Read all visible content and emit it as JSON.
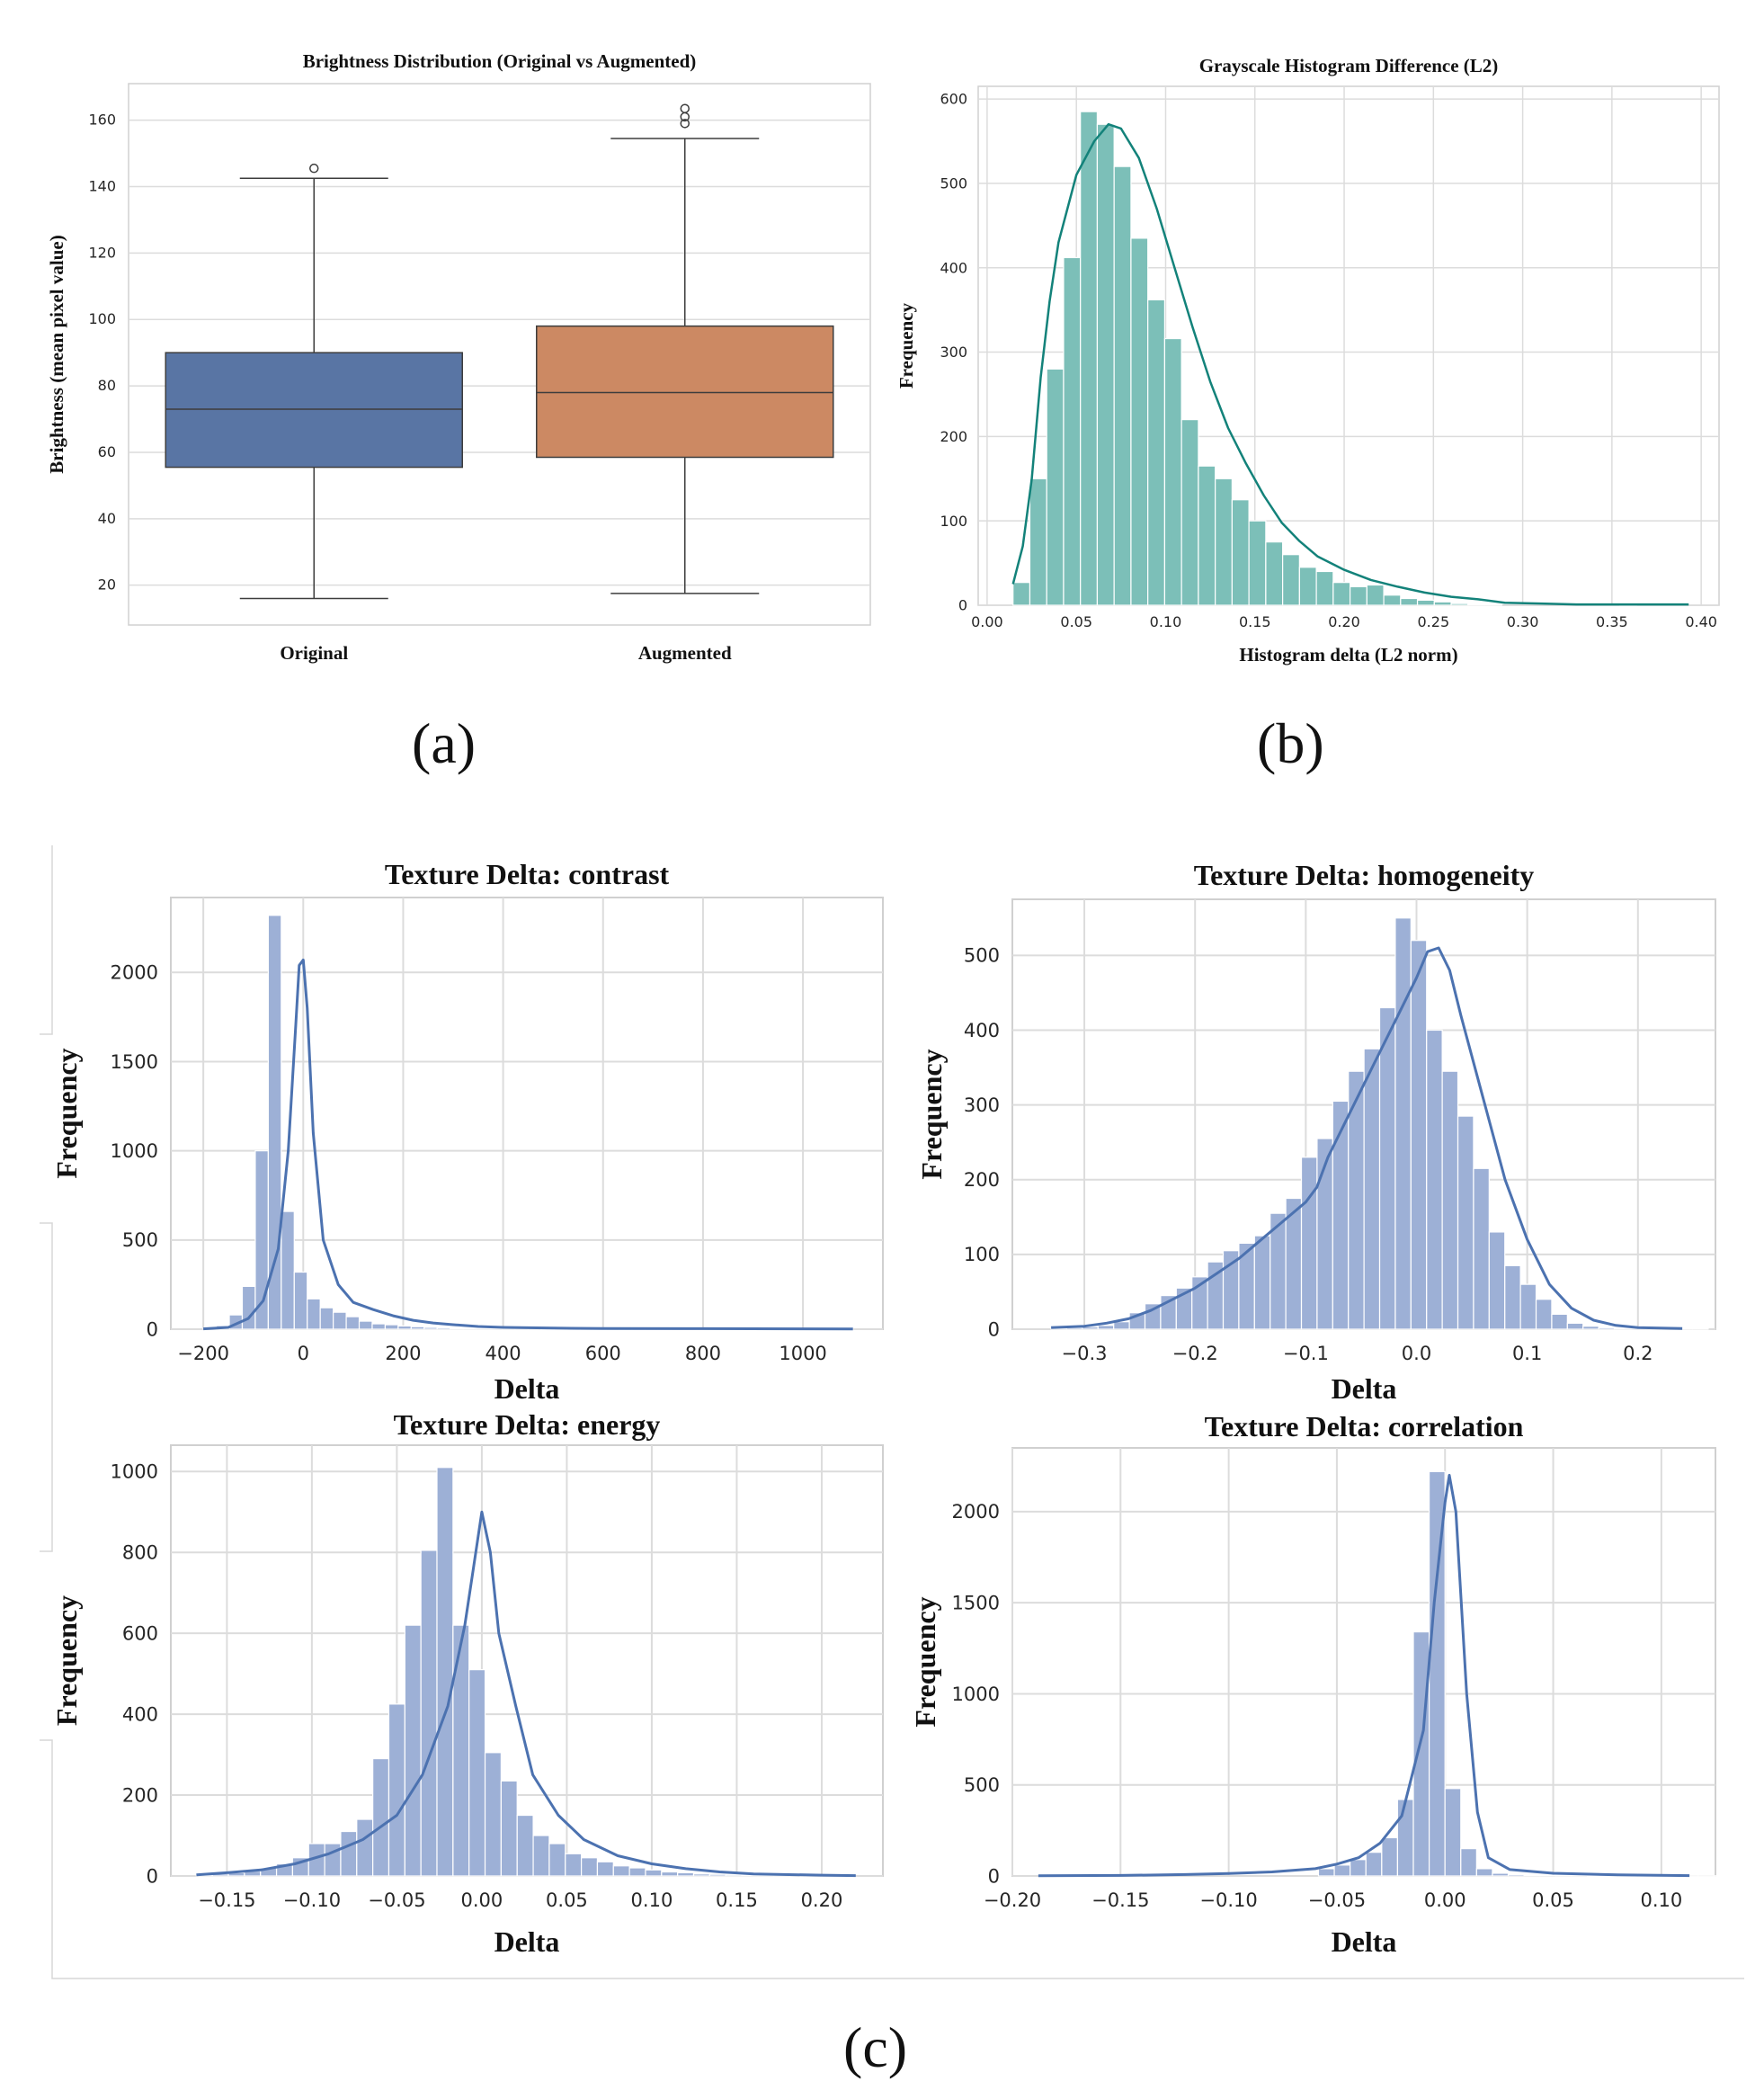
{
  "panel_labels": [
    "(a)",
    "(b)",
    "(c)"
  ],
  "chart_data": [
    {
      "id": "a",
      "type": "box",
      "title": "Brightness Distribution  (Original vs Augmented)",
      "xlabel": "",
      "ylabel": "Brightness (mean pixel value)",
      "categories": [
        "Original",
        "Augmented"
      ],
      "ylim": [
        8,
        171
      ],
      "yticks": [
        20,
        40,
        60,
        80,
        100,
        120,
        140,
        160
      ],
      "grid": true,
      "colors": [
        "#5975a4",
        "#cc8963"
      ],
      "boxes": [
        {
          "name": "Original",
          "whisker_low": 16,
          "q1": 55.5,
          "median": 73,
          "q3": 90,
          "whisker_high": 142.5,
          "outliers": [
            145.5
          ]
        },
        {
          "name": "Augmented",
          "whisker_low": 17.5,
          "q1": 58.5,
          "median": 78,
          "q3": 98,
          "whisker_high": 154.5,
          "outliers": [
            159,
            161,
            163.5
          ]
        }
      ]
    },
    {
      "id": "b",
      "type": "histogram",
      "title": "Grayscale Histogram Difference (L2)",
      "xlabel": "Histogram delta (L2 norm)",
      "ylabel": "Frequency",
      "xlim": [
        -0.005,
        0.41
      ],
      "ylim": [
        0,
        615
      ],
      "xticks": [
        0.0,
        0.05,
        0.1,
        0.15,
        0.2,
        0.25,
        0.3,
        0.35,
        0.4
      ],
      "xtick_labels": [
        "0.00",
        "0.05",
        "0.10",
        "0.15",
        "0.20",
        "0.25",
        "0.30",
        "0.35",
        "0.40"
      ],
      "yticks": [
        0,
        100,
        200,
        300,
        400,
        500,
        600
      ],
      "grid": true,
      "bar_color": "#7cbfb8",
      "kde_color": "#13827a",
      "bin_start": 0.0145,
      "bin_width": 0.00944,
      "counts": [
        27,
        150,
        280,
        412,
        585,
        570,
        520,
        435,
        362,
        316,
        220,
        165,
        150,
        125,
        100,
        75,
        60,
        45,
        40,
        27,
        22,
        24,
        12,
        8,
        6,
        4,
        2,
        1,
        1,
        0,
        0,
        0,
        0,
        0,
        0,
        0,
        1,
        0,
        0,
        0,
        0
      ],
      "kde": [
        [
          0.0145,
          25
        ],
        [
          0.02,
          70
        ],
        [
          0.025,
          150
        ],
        [
          0.03,
          270
        ],
        [
          0.035,
          360
        ],
        [
          0.04,
          430
        ],
        [
          0.05,
          510
        ],
        [
          0.06,
          550
        ],
        [
          0.068,
          570
        ],
        [
          0.075,
          565
        ],
        [
          0.085,
          530
        ],
        [
          0.095,
          470
        ],
        [
          0.105,
          400
        ],
        [
          0.115,
          330
        ],
        [
          0.125,
          265
        ],
        [
          0.135,
          210
        ],
        [
          0.145,
          168
        ],
        [
          0.155,
          130
        ],
        [
          0.165,
          98
        ],
        [
          0.175,
          76
        ],
        [
          0.185,
          58
        ],
        [
          0.2,
          42
        ],
        [
          0.215,
          30
        ],
        [
          0.23,
          22
        ],
        [
          0.245,
          15
        ],
        [
          0.26,
          10
        ],
        [
          0.275,
          7
        ],
        [
          0.29,
          3
        ],
        [
          0.31,
          2
        ],
        [
          0.33,
          1
        ],
        [
          0.36,
          1
        ],
        [
          0.393,
          1
        ]
      ]
    },
    {
      "id": "c1",
      "type": "histogram",
      "title": "Texture Delta: contrast",
      "xlabel": "Delta",
      "ylabel": "Frequency",
      "xlim": [
        -265,
        1160
      ],
      "ylim": [
        0,
        2420
      ],
      "xticks": [
        -200,
        0,
        200,
        400,
        600,
        800,
        1000
      ],
      "xtick_labels": [
        "−200",
        "0",
        "200",
        "400",
        "600",
        "800",
        "1000"
      ],
      "yticks": [
        0,
        500,
        1000,
        1500,
        2000
      ],
      "grid": true,
      "bar_color": "#9db0d6",
      "kde_color": "#4c72b0",
      "bin_start": -200,
      "bin_width": 26,
      "counts": [
        5,
        20,
        80,
        240,
        1000,
        2320,
        660,
        320,
        170,
        120,
        95,
        70,
        45,
        30,
        25,
        18,
        14,
        10,
        8,
        6,
        5,
        4,
        3,
        2,
        2,
        2,
        1,
        1,
        1,
        1,
        1,
        1,
        1,
        1,
        1,
        1,
        1,
        1,
        1,
        1,
        1,
        1,
        1,
        1,
        1,
        1,
        1,
        1,
        1,
        1
      ],
      "kde": [
        [
          -200,
          2
        ],
        [
          -150,
          10
        ],
        [
          -110,
          60
        ],
        [
          -80,
          160
        ],
        [
          -50,
          450
        ],
        [
          -30,
          1000
        ],
        [
          -15,
          1700
        ],
        [
          -8,
          2040
        ],
        [
          0,
          2070
        ],
        [
          8,
          1800
        ],
        [
          20,
          1100
        ],
        [
          40,
          500
        ],
        [
          70,
          250
        ],
        [
          100,
          150
        ],
        [
          140,
          110
        ],
        [
          180,
          75
        ],
        [
          220,
          50
        ],
        [
          260,
          35
        ],
        [
          300,
          25
        ],
        [
          350,
          15
        ],
        [
          400,
          10
        ],
        [
          500,
          6
        ],
        [
          600,
          4
        ],
        [
          800,
          3
        ],
        [
          1000,
          2
        ],
        [
          1100,
          1
        ]
      ]
    },
    {
      "id": "c2",
      "type": "histogram",
      "title": "Texture Delta: homogeneity",
      "xlabel": "Delta",
      "ylabel": "Frequency",
      "xlim": [
        -0.365,
        0.27
      ],
      "ylim": [
        0,
        575
      ],
      "xticks": [
        -0.3,
        -0.2,
        -0.1,
        0.0,
        0.1,
        0.2
      ],
      "xtick_labels": [
        "−0.3",
        "−0.2",
        "−0.1",
        "0.0",
        "0.1",
        "0.2"
      ],
      "yticks": [
        0,
        100,
        200,
        300,
        400,
        500
      ],
      "grid": true,
      "bar_color": "#9db0d6",
      "kde_color": "#4c72b0",
      "bin_start": -0.33,
      "bin_width": 0.01413,
      "counts": [
        1,
        2,
        3,
        5,
        10,
        22,
        34,
        45,
        55,
        70,
        90,
        105,
        115,
        125,
        155,
        175,
        230,
        255,
        305,
        345,
        375,
        430,
        550,
        520,
        400,
        345,
        285,
        215,
        130,
        85,
        60,
        40,
        20,
        8,
        4,
        2,
        1,
        1,
        1,
        1,
        1,
        1
      ],
      "kde": [
        [
          -0.33,
          2
        ],
        [
          -0.3,
          4
        ],
        [
          -0.28,
          8
        ],
        [
          -0.26,
          14
        ],
        [
          -0.24,
          25
        ],
        [
          -0.22,
          40
        ],
        [
          -0.2,
          55
        ],
        [
          -0.18,
          75
        ],
        [
          -0.16,
          95
        ],
        [
          -0.14,
          120
        ],
        [
          -0.12,
          145
        ],
        [
          -0.1,
          170
        ],
        [
          -0.09,
          190
        ],
        [
          -0.08,
          230
        ],
        [
          -0.06,
          290
        ],
        [
          -0.04,
          350
        ],
        [
          -0.02,
          410
        ],
        [
          0.0,
          470
        ],
        [
          0.01,
          505
        ],
        [
          0.02,
          510
        ],
        [
          0.03,
          480
        ],
        [
          0.04,
          420
        ],
        [
          0.06,
          310
        ],
        [
          0.08,
          200
        ],
        [
          0.1,
          120
        ],
        [
          0.12,
          60
        ],
        [
          0.14,
          28
        ],
        [
          0.16,
          12
        ],
        [
          0.18,
          5
        ],
        [
          0.2,
          2
        ],
        [
          0.24,
          1
        ]
      ]
    },
    {
      "id": "c3",
      "type": "histogram",
      "title": "Texture Delta: energy",
      "xlabel": "Delta",
      "ylabel": "Frequency",
      "xlim": [
        -0.183,
        0.236
      ],
      "ylim": [
        0,
        1065
      ],
      "xticks": [
        -0.15,
        -0.1,
        -0.05,
        0.0,
        0.05,
        0.1,
        0.15,
        0.2
      ],
      "xtick_labels": [
        "−0.15",
        "−0.10",
        "−0.05",
        "0.00",
        "0.05",
        "0.10",
        "0.15",
        "0.20"
      ],
      "yticks": [
        0,
        200,
        400,
        600,
        800,
        1000
      ],
      "grid": true,
      "bar_color": "#9db0d6",
      "kde_color": "#4c72b0",
      "bin_start": -0.168,
      "bin_width": 0.00944,
      "counts": [
        3,
        5,
        8,
        12,
        20,
        30,
        45,
        80,
        80,
        110,
        140,
        290,
        425,
        620,
        805,
        1010,
        620,
        510,
        305,
        235,
        150,
        100,
        80,
        55,
        45,
        35,
        25,
        20,
        15,
        10,
        8,
        5,
        4,
        3,
        2,
        2,
        1,
        1,
        1,
        1,
        1
      ],
      "kde": [
        [
          -0.168,
          3
        ],
        [
          -0.15,
          8
        ],
        [
          -0.13,
          15
        ],
        [
          -0.11,
          30
        ],
        [
          -0.09,
          55
        ],
        [
          -0.07,
          90
        ],
        [
          -0.05,
          150
        ],
        [
          -0.035,
          250
        ],
        [
          -0.02,
          420
        ],
        [
          -0.01,
          620
        ],
        [
          -0.005,
          760
        ],
        [
          0.0,
          900
        ],
        [
          0.005,
          800
        ],
        [
          0.01,
          600
        ],
        [
          0.02,
          420
        ],
        [
          0.03,
          250
        ],
        [
          0.045,
          150
        ],
        [
          0.06,
          90
        ],
        [
          0.08,
          50
        ],
        [
          0.1,
          30
        ],
        [
          0.12,
          18
        ],
        [
          0.14,
          10
        ],
        [
          0.16,
          5
        ],
        [
          0.2,
          2
        ],
        [
          0.22,
          1
        ]
      ]
    },
    {
      "id": "c4",
      "type": "histogram",
      "title": "Texture Delta: correlation",
      "xlabel": "Delta",
      "ylabel": "Frequency",
      "xlim": [
        -0.2,
        0.125
      ],
      "ylim": [
        0,
        2350
      ],
      "xticks": [
        -0.2,
        -0.15,
        -0.1,
        -0.05,
        0.0,
        0.05,
        0.1
      ],
      "xtick_labels": [
        "−0.20",
        "−0.15",
        "−0.10",
        "−0.05",
        "0.00",
        "0.05",
        "0.10"
      ],
      "yticks": [
        0,
        500,
        1000,
        1500,
        2000
      ],
      "grid": true,
      "bar_color": "#9db0d6",
      "kde_color": "#4c72b0",
      "bin_start": -0.0585,
      "bin_width": 0.00731,
      "counts": [
        40,
        60,
        90,
        130,
        210,
        420,
        1340,
        2220,
        480,
        150,
        40,
        15,
        8,
        5,
        3,
        2,
        2,
        1,
        1,
        1,
        1,
        1,
        1,
        1,
        1,
        1
      ],
      "kde": [
        [
          -0.188,
          1
        ],
        [
          -0.15,
          3
        ],
        [
          -0.12,
          8
        ],
        [
          -0.1,
          14
        ],
        [
          -0.08,
          22
        ],
        [
          -0.06,
          40
        ],
        [
          -0.05,
          65
        ],
        [
          -0.04,
          100
        ],
        [
          -0.03,
          180
        ],
        [
          -0.02,
          330
        ],
        [
          -0.01,
          800
        ],
        [
          -0.005,
          1500
        ],
        [
          0.0,
          2050
        ],
        [
          0.002,
          2200
        ],
        [
          0.005,
          2000
        ],
        [
          0.01,
          1000
        ],
        [
          0.015,
          350
        ],
        [
          0.02,
          100
        ],
        [
          0.03,
          35
        ],
        [
          0.05,
          15
        ],
        [
          0.08,
          6
        ],
        [
          0.113,
          2
        ]
      ]
    }
  ]
}
